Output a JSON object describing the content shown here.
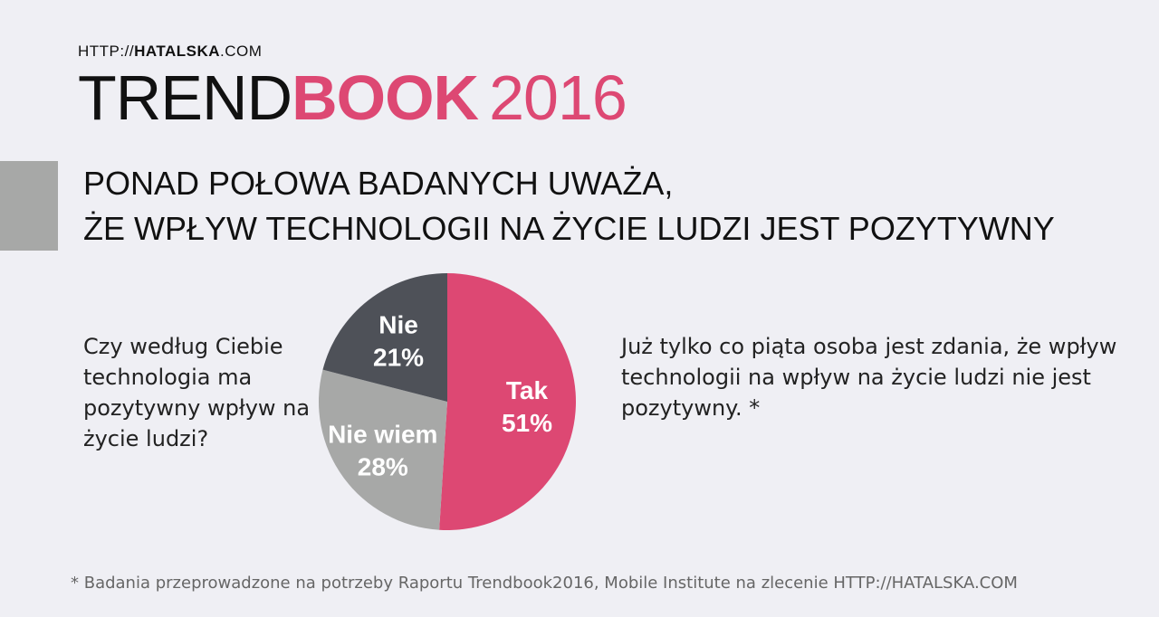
{
  "header": {
    "url_prefix": "HTTP://",
    "url_brand": "HATALSKA",
    "url_suffix": ".COM",
    "title_part1": "TREND",
    "title_part2": "BOOK",
    "title_year": "2016"
  },
  "headline": {
    "line1": "PONAD POŁOWA BADANYCH UWAŻA,",
    "line2": "ŻE WPŁYW TECHNOLOGII NA ŻYCIE LUDZI JEST POZYTYWNY"
  },
  "question": "Czy według Ciebie technologia ma pozytywny wpływ na życie ludzi?",
  "comment": "Już tylko co piąta osoba jest zdania, że wpływ technologii na wpływ na życie ludzi nie jest pozytywny. *",
  "footnote": "* Badania przeprowadzone na potrzeby Raportu Trendbook2016, Mobile Institute na zlecenie HTTP://HATALSKA.COM",
  "colors": {
    "accent": "#dd4873",
    "tak": "#dd4873",
    "nie": "#4e5158",
    "nie_wiem": "#a7a8a7",
    "background": "#efeff4"
  },
  "chart_data": {
    "type": "pie",
    "title": "",
    "slices": [
      {
        "label": "Tak",
        "value": 51,
        "value_label": "51%",
        "color": "#dd4873"
      },
      {
        "label": "Nie wiem",
        "value": 28,
        "value_label": "28%",
        "color": "#a7a8a7"
      },
      {
        "label": "Nie",
        "value": 21,
        "value_label": "21%",
        "color": "#4e5158"
      }
    ],
    "start": "top",
    "direction": "clockwise"
  }
}
